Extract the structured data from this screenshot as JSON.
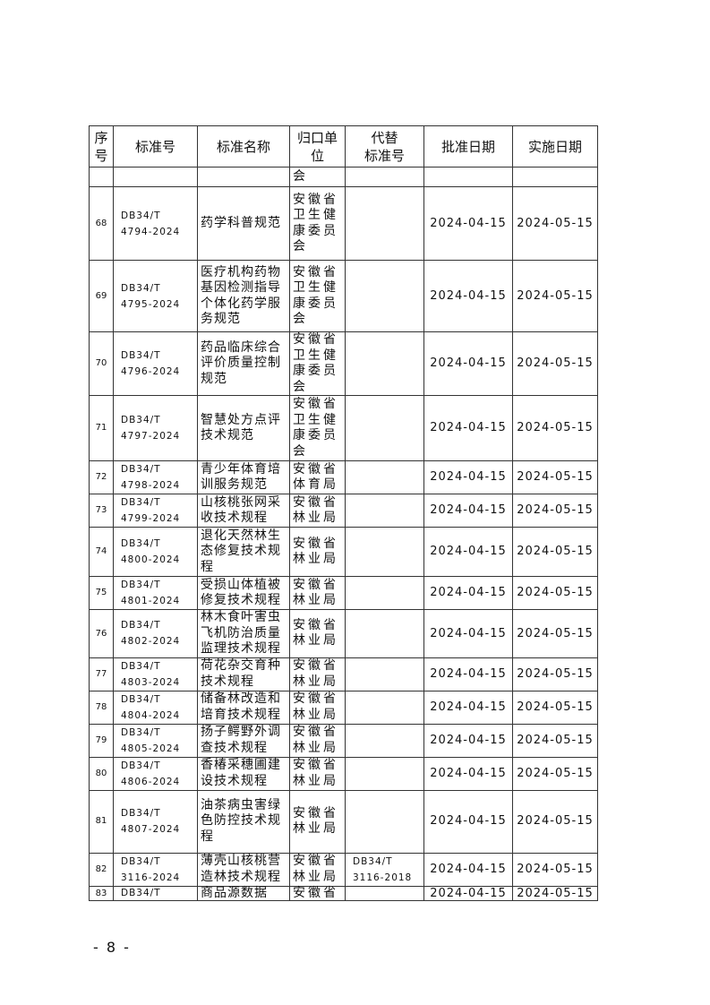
{
  "table": {
    "headers": [
      "序\n号",
      "标准号",
      "标准名称",
      "归口单\n位",
      "代替\n标准号",
      "批准日期",
      "实施日期"
    ],
    "continuation_row": {
      "unit": "会"
    },
    "rows": [
      {
        "no": "68",
        "code": "DB34/T\n4794-2024",
        "name": "药学科普规范",
        "unit": "安徽省\n卫生健\n康委员\n会",
        "replaces": "",
        "approve": "2024-04-15",
        "implement": "2024-05-15"
      },
      {
        "no": "69",
        "code": "DB34/T\n4795-2024",
        "name": "医疗机构药物\n基因检测指导\n个体化药学服\n务规范",
        "unit": "安徽省\n卫生健\n康委员\n会",
        "replaces": "",
        "approve": "2024-04-15",
        "implement": "2024-05-15"
      },
      {
        "no": "70",
        "code": "DB34/T\n4796-2024",
        "name": "药品临床综合\n评价质量控制\n规范",
        "unit": "安徽省\n卫生健\n康委员\n会",
        "replaces": "",
        "approve": "2024-04-15",
        "implement": "2024-05-15"
      },
      {
        "no": "71",
        "code": "DB34/T\n4797-2024",
        "name": "智慧处方点评\n技术规范",
        "unit": "安徽省\n卫生健\n康委员\n会",
        "replaces": "",
        "approve": "2024-04-15",
        "implement": "2024-05-15"
      },
      {
        "no": "72",
        "code": "DB34/T\n4798-2024",
        "name": "青少年体育培\n训服务规范",
        "unit": "安徽省\n体育局",
        "replaces": "",
        "approve": "2024-04-15",
        "implement": "2024-05-15"
      },
      {
        "no": "73",
        "code": "DB34/T\n4799-2024",
        "name": "山核桃张网采\n收技术规程",
        "unit": "安徽省\n林业局",
        "replaces": "",
        "approve": "2024-04-15",
        "implement": "2024-05-15"
      },
      {
        "no": "74",
        "code": "DB34/T\n4800-2024",
        "name": "退化天然林生\n态修复技术规\n程",
        "unit": "安徽省\n林业局",
        "replaces": "",
        "approve": "2024-04-15",
        "implement": "2024-05-15"
      },
      {
        "no": "75",
        "code": "DB34/T\n4801-2024",
        "name": "受损山体植被\n修复技术规程",
        "unit": "安徽省\n林业局",
        "replaces": "",
        "approve": "2024-04-15",
        "implement": "2024-05-15"
      },
      {
        "no": "76",
        "code": "DB34/T\n4802-2024",
        "name": "林木食叶害虫\n飞机防治质量\n监理技术规程",
        "unit": "安徽省\n林业局",
        "replaces": "",
        "approve": "2024-04-15",
        "implement": "2024-05-15"
      },
      {
        "no": "77",
        "code": "DB34/T\n4803-2024",
        "name": "荷花杂交育种\n技术规程",
        "unit": "安徽省\n林业局",
        "replaces": "",
        "approve": "2024-04-15",
        "implement": "2024-05-15"
      },
      {
        "no": "78",
        "code": "DB34/T\n4804-2024",
        "name": "储备林改造和\n培育技术规程",
        "unit": "安徽省\n林业局",
        "replaces": "",
        "approve": "2024-04-15",
        "implement": "2024-05-15"
      },
      {
        "no": "79",
        "code": "DB34/T\n4805-2024",
        "name": "扬子鳄野外调\n查技术规程",
        "unit": "安徽省\n林业局",
        "replaces": "",
        "approve": "2024-04-15",
        "implement": "2024-05-15"
      },
      {
        "no": "80",
        "code": "DB34/T\n4806-2024",
        "name": "香椿采穗圃建\n设技术规程",
        "unit": "安徽省\n林业局",
        "replaces": "",
        "approve": "2024-04-15",
        "implement": "2024-05-15"
      },
      {
        "no": "81",
        "code": "DB34/T\n4807-2024",
        "name": "油茶病虫害绿\n色防控技术规\n程",
        "unit": "安徽省\n林业局",
        "replaces": "",
        "approve": "2024-04-15",
        "implement": "2024-05-15"
      },
      {
        "no": "82",
        "code": "DB34/T\n3116-2024",
        "name": "薄壳山核桃营\n造林技术规程",
        "unit": "安徽省\n林业局",
        "replaces": "DB34/T\n3116-2018",
        "approve": "2024-04-15",
        "implement": "2024-05-15"
      },
      {
        "no": "83",
        "code": "DB34/T",
        "name": "商品源数据",
        "unit": "安徽省",
        "replaces": "",
        "approve": "2024-04-15",
        "implement": "2024-05-15"
      }
    ]
  },
  "footer": {
    "page_number": "- 8 -"
  }
}
